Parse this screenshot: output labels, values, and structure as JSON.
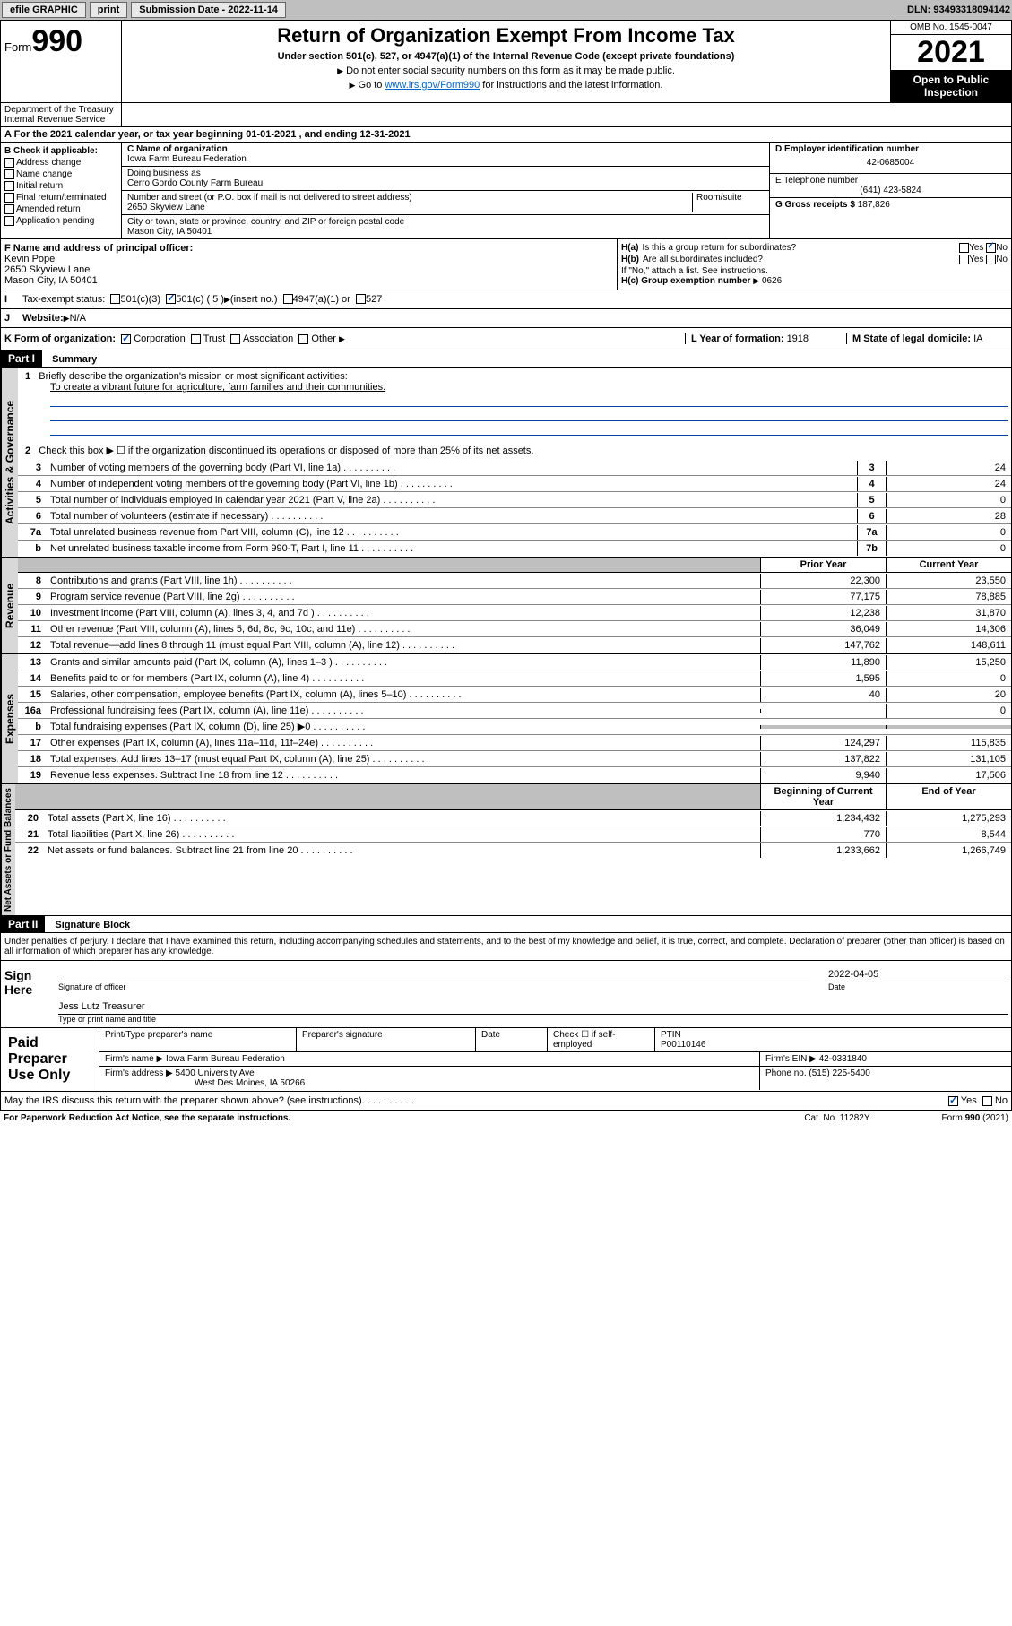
{
  "topbar": {
    "efile": "efile GRAPHIC",
    "print": "print",
    "sub_label": "Submission Date - 2022-11-14",
    "dln": "DLN: 93493318094142"
  },
  "header": {
    "form_label": "Form",
    "form_num": "990",
    "title": "Return of Organization Exempt From Income Tax",
    "subtitle": "Under section 501(c), 527, or 4947(a)(1) of the Internal Revenue Code (except private foundations)",
    "note1": "Do not enter social security numbers on this form as it may be made public.",
    "note2_pre": "Go to ",
    "note2_link": "www.irs.gov/Form990",
    "note2_post": " for instructions and the latest information.",
    "omb": "OMB No. 1545-0047",
    "year": "2021",
    "open": "Open to Public Inspection",
    "dept": "Department of the Treasury\nInternal Revenue Service"
  },
  "period": {
    "label_a": "A For the 2021 calendar year, or tax year beginning ",
    "begin": "01-01-2021",
    "mid": " , and ending ",
    "end": "12-31-2021"
  },
  "checkB": {
    "label": "B Check if applicable:",
    "items": [
      "Address change",
      "Name change",
      "Initial return",
      "Final return/terminated",
      "Amended return",
      "Application pending"
    ]
  },
  "org": {
    "c_label": "C Name of organization",
    "name": "Iowa Farm Bureau Federation",
    "dba_label": "Doing business as",
    "dba": "Cerro Gordo County Farm Bureau",
    "addr_label": "Number and street (or P.O. box if mail is not delivered to street address)",
    "room_label": "Room/suite",
    "street": "2650 Skyview Lane",
    "city_label": "City or town, state or province, country, and ZIP or foreign postal code",
    "city": "Mason City, IA  50401"
  },
  "right_info": {
    "d_label": "D Employer identification number",
    "ein": "42-0685004",
    "e_label": "E Telephone number",
    "phone": "(641) 423-5824",
    "g_label": "G Gross receipts $ ",
    "gross": "187,826"
  },
  "officer": {
    "f_label": "F Name and address of principal officer:",
    "name": "Kevin Pope",
    "street": "2650 Skyview Lane",
    "city": "Mason City, IA  50401"
  },
  "ha": {
    "a_label": "H(a)  Is this a group return for subordinates?",
    "b_label": "H(b)  Are all subordinates included?",
    "yes": "Yes",
    "no": "No",
    "attach": "If \"No,\" attach a list. See instructions.",
    "c_label": "H(c)  Group exemption number ",
    "c_val": "0626"
  },
  "rowI": {
    "label": "Tax-exempt status:",
    "opt1": "501(c)(3)",
    "opt2": "501(c) ( 5 ) ",
    "insert": "(insert no.)",
    "opt3": "4947(a)(1) or",
    "opt4": "527"
  },
  "rowJ": {
    "label": "Website: ",
    "val": "N/A"
  },
  "rowK": {
    "label": "K Form of organization:",
    "corp": "Corporation",
    "trust": "Trust",
    "assoc": "Association",
    "other": "Other",
    "l_label": "L Year of formation: ",
    "l_val": "1918",
    "m_label": "M State of legal domicile: ",
    "m_val": "IA"
  },
  "part1": {
    "header": "Part I",
    "title": "Summary",
    "vert1": "Activities & Governance",
    "vert2": "Revenue",
    "vert3": "Expenses",
    "vert4": "Net Assets or Fund Balances",
    "line1_label": "Briefly describe the organization's mission or most significant activities:",
    "line1_text": "To create a vibrant future for agriculture, farm families and their communities.",
    "line2": "Check this box ▶ ☐  if the organization discontinued its operations or disposed of more than 25% of its net assets.",
    "lines_gov": [
      {
        "n": "3",
        "t": "Number of voting members of the governing body (Part VI, line 1a)",
        "box": "3",
        "v": "24"
      },
      {
        "n": "4",
        "t": "Number of independent voting members of the governing body (Part VI, line 1b)",
        "box": "4",
        "v": "24"
      },
      {
        "n": "5",
        "t": "Total number of individuals employed in calendar year 2021 (Part V, line 2a)",
        "box": "5",
        "v": "0"
      },
      {
        "n": "6",
        "t": "Total number of volunteers (estimate if necessary)",
        "box": "6",
        "v": "28"
      },
      {
        "n": "7a",
        "t": "Total unrelated business revenue from Part VIII, column (C), line 12",
        "box": "7a",
        "v": "0"
      },
      {
        "n": "b",
        "t": "Net unrelated business taxable income from Form 990-T, Part I, line 11",
        "box": "7b",
        "v": "0"
      }
    ],
    "prior_label": "Prior Year",
    "current_label": "Current Year",
    "lines_rev": [
      {
        "n": "8",
        "t": "Contributions and grants (Part VIII, line 1h)",
        "p": "22,300",
        "c": "23,550"
      },
      {
        "n": "9",
        "t": "Program service revenue (Part VIII, line 2g)",
        "p": "77,175",
        "c": "78,885"
      },
      {
        "n": "10",
        "t": "Investment income (Part VIII, column (A), lines 3, 4, and 7d )",
        "p": "12,238",
        "c": "31,870"
      },
      {
        "n": "11",
        "t": "Other revenue (Part VIII, column (A), lines 5, 6d, 8c, 9c, 10c, and 11e)",
        "p": "36,049",
        "c": "14,306"
      },
      {
        "n": "12",
        "t": "Total revenue—add lines 8 through 11 (must equal Part VIII, column (A), line 12)",
        "p": "147,762",
        "c": "148,611"
      }
    ],
    "lines_exp": [
      {
        "n": "13",
        "t": "Grants and similar amounts paid (Part IX, column (A), lines 1–3 )",
        "p": "11,890",
        "c": "15,250"
      },
      {
        "n": "14",
        "t": "Benefits paid to or for members (Part IX, column (A), line 4)",
        "p": "1,595",
        "c": "0"
      },
      {
        "n": "15",
        "t": "Salaries, other compensation, employee benefits (Part IX, column (A), lines 5–10)",
        "p": "40",
        "c": "20"
      },
      {
        "n": "16a",
        "t": "Professional fundraising fees (Part IX, column (A), line 11e)",
        "p": "",
        "c": "0"
      },
      {
        "n": "b",
        "t": "Total fundraising expenses (Part IX, column (D), line 25) ▶0",
        "p": "",
        "c": "",
        "shaded": true
      },
      {
        "n": "17",
        "t": "Other expenses (Part IX, column (A), lines 11a–11d, 11f–24e)",
        "p": "124,297",
        "c": "115,835"
      },
      {
        "n": "18",
        "t": "Total expenses. Add lines 13–17 (must equal Part IX, column (A), line 25)",
        "p": "137,822",
        "c": "131,105"
      },
      {
        "n": "19",
        "t": "Revenue less expenses. Subtract line 18 from line 12",
        "p": "9,940",
        "c": "17,506"
      }
    ],
    "begin_label": "Beginning of Current Year",
    "end_label": "End of Year",
    "lines_net": [
      {
        "n": "20",
        "t": "Total assets (Part X, line 16)",
        "p": "1,234,432",
        "c": "1,275,293"
      },
      {
        "n": "21",
        "t": "Total liabilities (Part X, line 26)",
        "p": "770",
        "c": "8,544"
      },
      {
        "n": "22",
        "t": "Net assets or fund balances. Subtract line 21 from line 20",
        "p": "1,233,662",
        "c": "1,266,749"
      }
    ]
  },
  "part2": {
    "header": "Part II",
    "title": "Signature Block",
    "penalty": "Under penalties of perjury, I declare that I have examined this return, including accompanying schedules and statements, and to the best of my knowledge and belief, it is true, correct, and complete. Declaration of preparer (other than officer) is based on all information of which preparer has any knowledge.",
    "sign_here": "Sign Here",
    "sig_officer": "Signature of officer",
    "date": "Date",
    "sig_date": "2022-04-05",
    "name_title": "Jess Lutz  Treasurer",
    "type_name": "Type or print name and title",
    "paid": "Paid Preparer Use Only",
    "prep_name_label": "Print/Type preparer's name",
    "prep_sig_label": "Preparer's signature",
    "date_label": "Date",
    "check_label": "Check ☐ if self-employed",
    "ptin_label": "PTIN",
    "ptin": "P00110146",
    "firm_name_label": "Firm's name ▶ ",
    "firm_name": "Iowa Farm Bureau Federation",
    "firm_ein_label": "Firm's EIN ▶ ",
    "firm_ein": "42-0331840",
    "firm_addr_label": "Firm's address ▶ ",
    "firm_addr1": "5400 University Ave",
    "firm_addr2": "West Des Moines, IA  50266",
    "phone_label": "Phone no. ",
    "phone": "(515) 225-5400",
    "discuss": "May the IRS discuss this return with the preparer shown above? (see instructions)",
    "yes": "Yes",
    "no": "No"
  },
  "footer": {
    "left": "For Paperwork Reduction Act Notice, see the separate instructions.",
    "mid": "Cat. No. 11282Y",
    "right": "Form 990 (2021)"
  }
}
